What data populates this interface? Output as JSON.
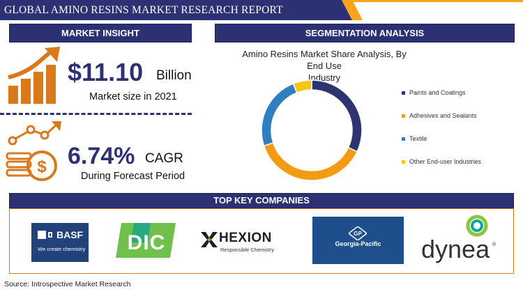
{
  "header": {
    "title": "GLOBAL AMINO RESINS MARKET RESEARCH REPORT"
  },
  "market_insight": {
    "heading": "MARKET INSIGHT",
    "market_size_value": "$11.10",
    "market_size_unit": "Billion",
    "market_size_caption": "Market size in 2021",
    "cagr_value": "6.74%",
    "cagr_unit": "CAGR",
    "cagr_caption": "During Forecast Period"
  },
  "segmentation": {
    "heading": "SEGMENTATION ANALYSIS",
    "chart_title_line1": "Amino Resins Market Share Analysis, By End Use",
    "chart_title_line2": "Industry"
  },
  "chart_data": {
    "type": "pie",
    "title": "Amino Resins Market Share Analysis, By End Use Industry",
    "categories": [
      "Paints and Coatings",
      "Adhesives and Sealants",
      "Textile",
      "Other End-user Industries"
    ],
    "values": [
      32,
      38,
      24,
      6
    ],
    "colors": [
      "#2e3470",
      "#f39c12",
      "#2f7fc1",
      "#f5c518"
    ],
    "legend_position": "right"
  },
  "companies": {
    "heading": "TOP KEY COMPANIES",
    "basf_name": "BASF",
    "basf_tagline": "We create chemistry",
    "dic_name": "DIC",
    "hexion_name": "HEXION",
    "hexion_tagline": "Responsible Chemistry",
    "gp_mark": "GP",
    "gp_name": "Georgia-Pacific",
    "dynea_name": "dynea"
  },
  "footer": {
    "source": "Source: Introspective Market Research"
  },
  "colors": {
    "navy": "#2c3173",
    "orange": "#f7a619",
    "accent_orange": "#d9791c"
  }
}
